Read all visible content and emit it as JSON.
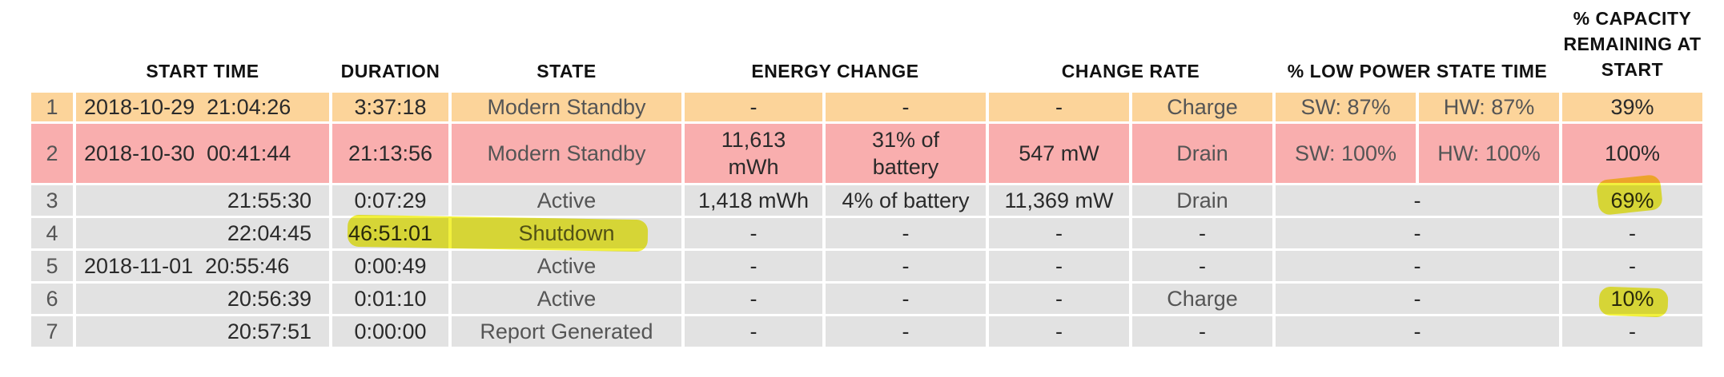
{
  "headers": {
    "start_time": "START TIME",
    "duration": "DURATION",
    "state": "STATE",
    "energy_change": "ENERGY CHANGE",
    "change_rate": "CHANGE RATE",
    "low_power": "% LOW POWER STATE TIME",
    "capacity": "% CAPACITY REMAINING AT START"
  },
  "rows": [
    {
      "num": "1",
      "date": "2018-10-29",
      "time": "21:04:26",
      "duration": "3:37:18",
      "state": "Modern Standby",
      "energy_mwh": "-",
      "energy_pct": "-",
      "rate": "-",
      "rate_type": "Charge",
      "sw": "SW: 87%",
      "hw": "HW: 87%",
      "capacity": "39%"
    },
    {
      "num": "2",
      "date": "2018-10-30",
      "time": "00:41:44",
      "duration": "21:13:56",
      "state": "Modern Standby",
      "energy_mwh": "11,613 mWh",
      "energy_pct": "31% of battery",
      "rate": "547 mW",
      "rate_type": "Drain",
      "sw": "SW: 100%",
      "hw": "HW: 100%",
      "capacity": "100%"
    },
    {
      "num": "3",
      "date": "",
      "time": "21:55:30",
      "duration": "0:07:29",
      "state": "Active",
      "energy_mwh": "1,418 mWh",
      "energy_pct": "4% of battery",
      "rate": "11,369 mW",
      "rate_type": "Drain",
      "low_power": "-",
      "capacity": "69%"
    },
    {
      "num": "4",
      "date": "",
      "time": "22:04:45",
      "duration": "46:51:01",
      "state": "Shutdown",
      "energy_mwh": "-",
      "energy_pct": "-",
      "rate": "-",
      "rate_type": "-",
      "low_power": "-",
      "capacity": "-"
    },
    {
      "num": "5",
      "date": "2018-11-01",
      "time": "20:55:46",
      "duration": "0:00:49",
      "state": "Active",
      "energy_mwh": "-",
      "energy_pct": "-",
      "rate": "-",
      "rate_type": "-",
      "low_power": "-",
      "capacity": "-"
    },
    {
      "num": "6",
      "date": "",
      "time": "20:56:39",
      "duration": "0:01:10",
      "state": "Active",
      "energy_mwh": "-",
      "energy_pct": "-",
      "rate": "-",
      "rate_type": "Charge",
      "low_power": "-",
      "capacity": "10%"
    },
    {
      "num": "7",
      "date": "",
      "time": "20:57:51",
      "duration": "0:00:00",
      "state": "Report Generated",
      "energy_mwh": "-",
      "energy_pct": "-",
      "rate": "-",
      "rate_type": "-",
      "low_power": "-",
      "capacity": "-"
    }
  ],
  "colors": {
    "modern_standby_charge_row": "#fcd49a",
    "modern_standby_drain_row": "#f9aeae",
    "default_row": "#e2e2e2",
    "highlighter": "#f0ef1a"
  }
}
